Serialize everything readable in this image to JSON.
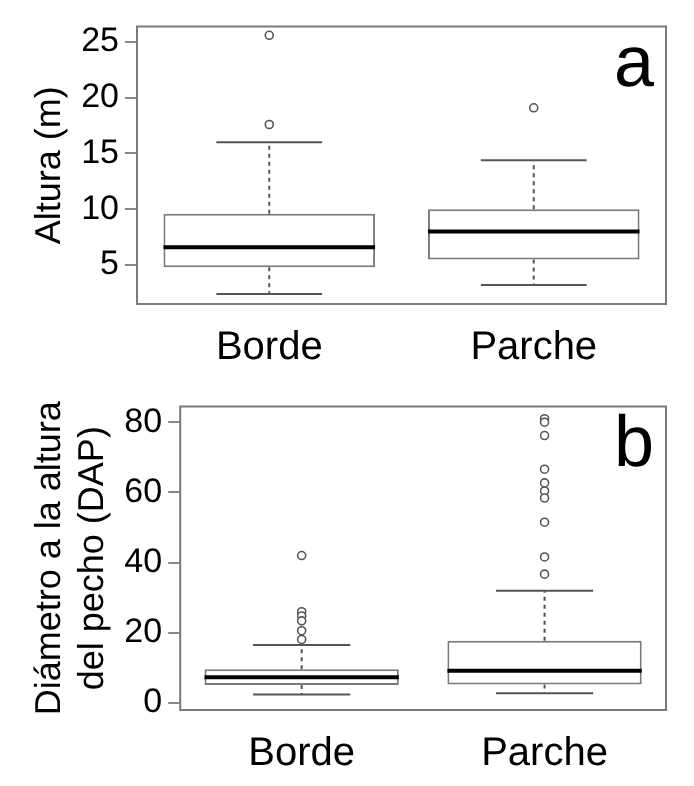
{
  "chart_data": [
    {
      "type": "box",
      "categories": [
        "Borde",
        "Parche"
      ],
      "ylabel": "Altura (m)",
      "annotations": [
        "a"
      ],
      "ylim": [
        1.5,
        26.4
      ],
      "yticks": [
        5,
        10,
        15,
        20,
        25
      ],
      "grid": false,
      "boxes": [
        {
          "low": 2.4,
          "q1": 4.8,
          "median": 6.6,
          "q3": 9.6,
          "high": 16.0,
          "outliers": [
            17.6,
            25.6
          ]
        },
        {
          "low": 3.2,
          "q1": 5.5,
          "median": 8.0,
          "q3": 10.0,
          "high": 14.4,
          "outliers": [
            19.1
          ]
        }
      ]
    },
    {
      "type": "box",
      "categories": [
        "Borde",
        "Parche"
      ],
      "ylabel": "Diámetro a la altura del pecho (DAP)",
      "annotations": [
        "b"
      ],
      "ylim": [
        -2,
        84.5
      ],
      "yticks": [
        0,
        20,
        40,
        60,
        80
      ],
      "grid": false,
      "boxes": [
        {
          "low": 2.4,
          "q1": 5.1,
          "median": 7.3,
          "q3": 9.6,
          "high": 16.5,
          "outliers": [
            18.1,
            20.6,
            23.4,
            24.8,
            26,
            42
          ]
        },
        {
          "low": 2.8,
          "q1": 5.3,
          "median": 9.2,
          "q3": 17.7,
          "high": 32.0,
          "outliers": [
            36.7,
            41.6,
            51.5,
            58.4,
            60.4,
            62.7,
            66.6,
            76.2,
            80,
            81
          ]
        }
      ]
    }
  ]
}
